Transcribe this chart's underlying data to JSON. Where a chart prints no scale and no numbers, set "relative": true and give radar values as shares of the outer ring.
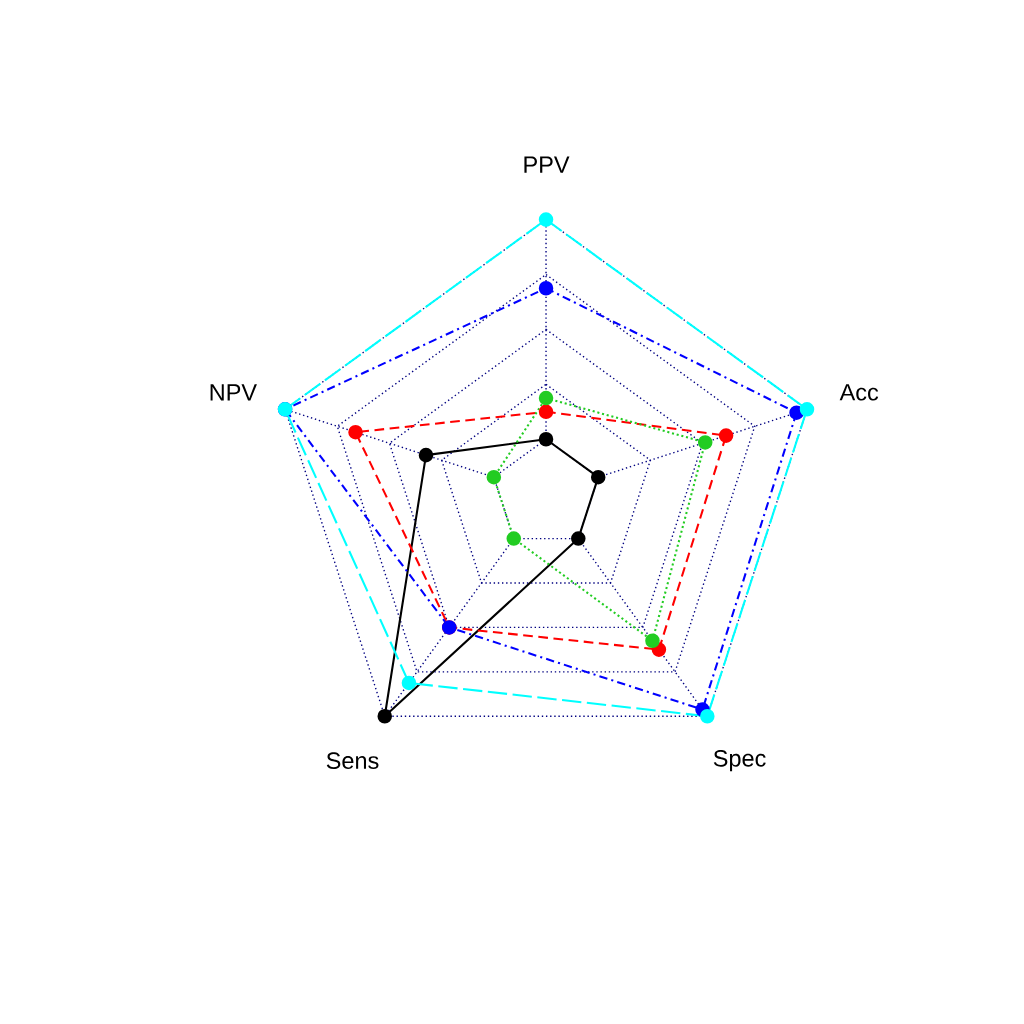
{
  "chart_data": {
    "type": "radar",
    "relative": true,
    "categories": [
      "PPV",
      "Acc",
      "Spec",
      "Sens",
      "NPV"
    ],
    "grid": true,
    "marker": "circle",
    "series": [
      {
        "color": "#000000",
        "line_style": "solid",
        "values": [
          0.2,
          0.2,
          0.2,
          1.0,
          0.46
        ]
      },
      {
        "color": "#ff0000",
        "line_style": "dashed",
        "values": [
          0.3,
          0.69,
          0.7,
          0.6,
          0.73
        ]
      },
      {
        "color": "#22cc22",
        "line_style": "dotted",
        "values": [
          0.35,
          0.61,
          0.66,
          0.2,
          0.2
        ]
      },
      {
        "color": "#0000ff",
        "line_style": "dashdot",
        "values": [
          0.75,
          0.96,
          0.97,
          0.6,
          1.0
        ]
      },
      {
        "color": "#00ffff",
        "line_style": "longdash",
        "values": [
          1.0,
          1.0,
          1.0,
          0.85,
          1.0
        ]
      }
    ]
  }
}
